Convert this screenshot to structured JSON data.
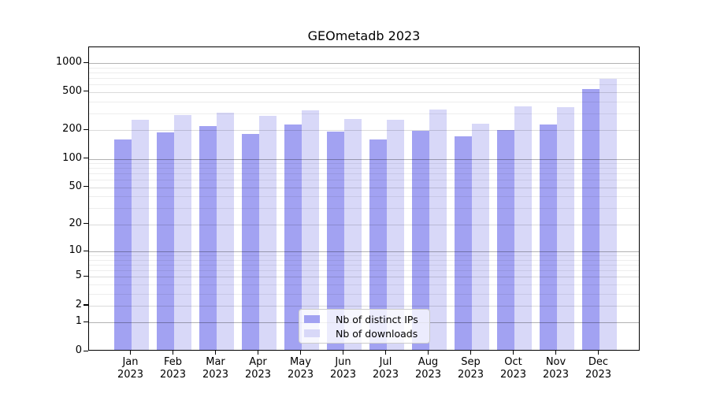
{
  "chart_data": {
    "type": "bar",
    "title": "GEOmetadb 2023",
    "y_scale": "log1p",
    "grid": true,
    "legend_position": "lower center",
    "ylim": [
      0,
      1500
    ],
    "yticks": [
      0,
      1,
      2,
      5,
      10,
      20,
      50,
      100,
      200,
      500,
      1000
    ],
    "categories": [
      "Jan 2023",
      "Feb 2023",
      "Mar 2023",
      "Apr 2023",
      "May 2023",
      "Jun 2023",
      "Jul 2023",
      "Aug 2023",
      "Sep 2023",
      "Oct 2023",
      "Nov 2023",
      "Dec 2023"
    ],
    "series": [
      {
        "name": "Nb of distinct IPs",
        "color": "#a2a2f2",
        "values": [
          153,
          183,
          211,
          176,
          219,
          185,
          153,
          188,
          165,
          193,
          219,
          513
        ]
      },
      {
        "name": "Nb of downloads",
        "color": "#d8d8f8",
        "values": [
          248,
          277,
          291,
          274,
          310,
          250,
          247,
          315,
          224,
          343,
          335,
          664
        ]
      }
    ]
  }
}
